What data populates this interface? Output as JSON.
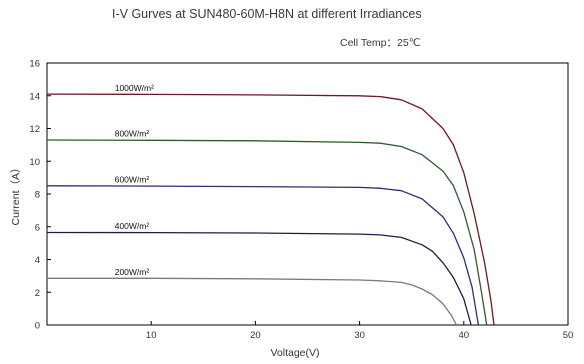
{
  "chart_data": {
    "type": "line",
    "title": "I-V Gurves at SUN480-60M-H8N at different Irradiances",
    "subtitle": "Cell Temp：25℃",
    "xlabel": "Voltage(V)",
    "ylabel": "Current（A）",
    "xlim": [
      0,
      50
    ],
    "ylim": [
      0,
      16
    ],
    "x_ticks": [
      "10",
      "20",
      "30",
      "40",
      "50"
    ],
    "y_ticks": [
      "0",
      "2",
      "4",
      "6",
      "8",
      "10",
      "12",
      "14",
      "16"
    ],
    "grid": false,
    "series": [
      {
        "name": "1000W/m²",
        "color": "#6b1a22",
        "points": [
          [
            0,
            14.1
          ],
          [
            10,
            14.08
          ],
          [
            20,
            14.05
          ],
          [
            30,
            14.0
          ],
          [
            32,
            13.95
          ],
          [
            34,
            13.75
          ],
          [
            36,
            13.2
          ],
          [
            38,
            12.0
          ],
          [
            39,
            11.0
          ],
          [
            40,
            9.3
          ],
          [
            41,
            6.8
          ],
          [
            42,
            3.8
          ],
          [
            42.6,
            1.5
          ],
          [
            42.9,
            0
          ]
        ]
      },
      {
        "name": "800W/m²",
        "color": "#2f5a2f",
        "points": [
          [
            0,
            11.3
          ],
          [
            10,
            11.28
          ],
          [
            20,
            11.25
          ],
          [
            30,
            11.15
          ],
          [
            32,
            11.1
          ],
          [
            34,
            10.9
          ],
          [
            36,
            10.4
          ],
          [
            38,
            9.4
          ],
          [
            39,
            8.5
          ],
          [
            40,
            6.9
          ],
          [
            41,
            4.6
          ],
          [
            41.7,
            2.0
          ],
          [
            42.2,
            0
          ]
        ]
      },
      {
        "name": "600W/m²",
        "color": "#2b2e78",
        "points": [
          [
            0,
            8.5
          ],
          [
            10,
            8.48
          ],
          [
            20,
            8.45
          ],
          [
            30,
            8.4
          ],
          [
            32,
            8.35
          ],
          [
            34,
            8.2
          ],
          [
            36,
            7.7
          ],
          [
            38,
            6.6
          ],
          [
            39,
            5.6
          ],
          [
            40,
            4.1
          ],
          [
            40.8,
            2.3
          ],
          [
            41.4,
            0
          ]
        ]
      },
      {
        "name": "400W/m²",
        "color": "#1a1f45",
        "points": [
          [
            0,
            5.65
          ],
          [
            10,
            5.64
          ],
          [
            20,
            5.62
          ],
          [
            30,
            5.55
          ],
          [
            32,
            5.5
          ],
          [
            34,
            5.35
          ],
          [
            36,
            4.9
          ],
          [
            37,
            4.5
          ],
          [
            38,
            3.8
          ],
          [
            39,
            2.9
          ],
          [
            40,
            1.6
          ],
          [
            40.7,
            0
          ]
        ]
      },
      {
        "name": "200W/m²",
        "color": "#7a7a7a",
        "points": [
          [
            0,
            2.85
          ],
          [
            10,
            2.85
          ],
          [
            20,
            2.82
          ],
          [
            30,
            2.75
          ],
          [
            32,
            2.7
          ],
          [
            34,
            2.6
          ],
          [
            35,
            2.45
          ],
          [
            36,
            2.2
          ],
          [
            37,
            1.85
          ],
          [
            38,
            1.3
          ],
          [
            38.8,
            0.6
          ],
          [
            39.3,
            0
          ]
        ]
      }
    ],
    "annotations": [
      {
        "text": "1000W/m²",
        "x": 6.5,
        "y": 14.3
      },
      {
        "text": "800W/m²",
        "x": 6.5,
        "y": 11.5
      },
      {
        "text": "600W/m²",
        "x": 6.5,
        "y": 8.7
      },
      {
        "text": "400W/m²",
        "x": 6.5,
        "y": 5.85
      },
      {
        "text": "200W/m²",
        "x": 6.5,
        "y": 3.05
      }
    ]
  }
}
